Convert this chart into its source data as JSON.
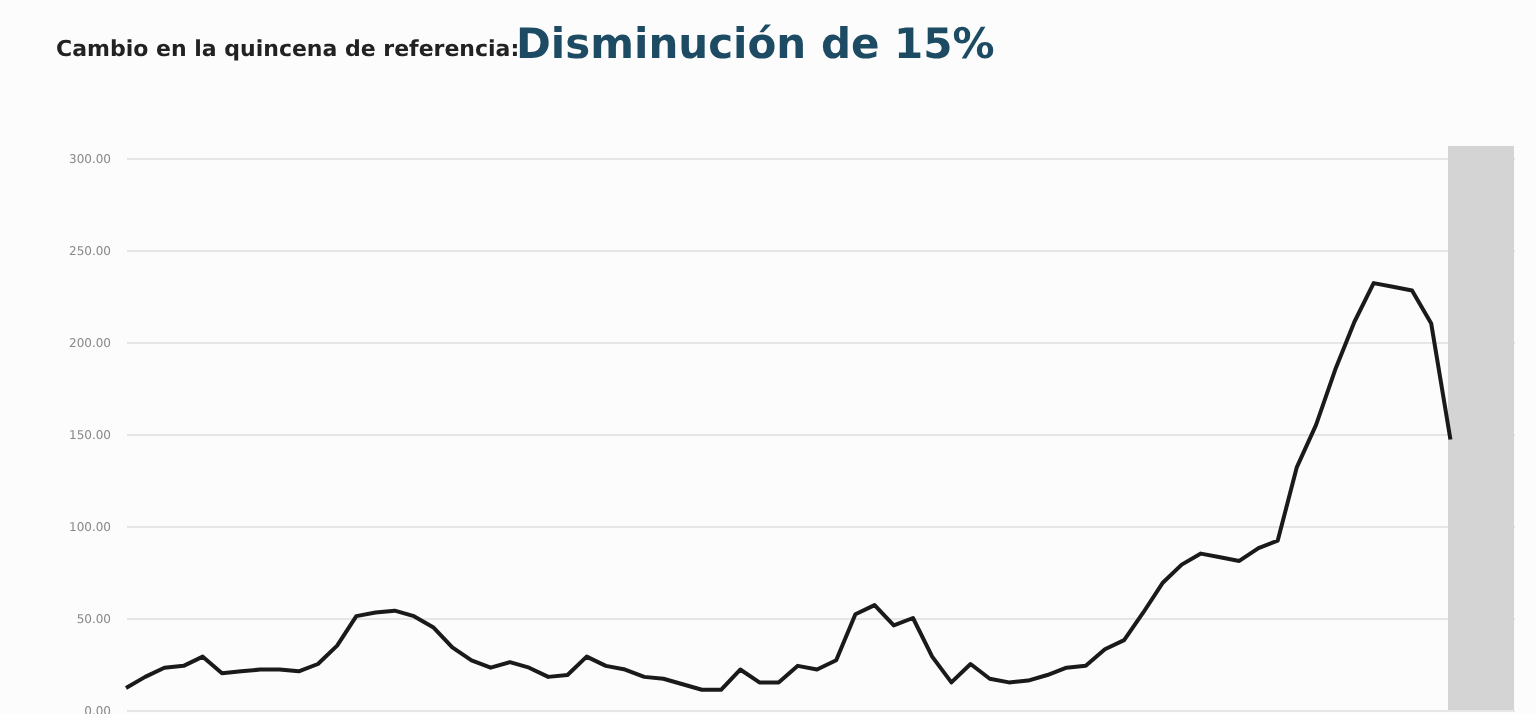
{
  "chart_data": {
    "type": "line",
    "title": "Disminución de 15%",
    "subtitle": "Cambio en la quincena de referencia:",
    "categories": [
      null,
      null,
      null,
      null,
      null,
      null,
      null,
      null,
      null,
      null,
      null,
      null,
      null,
      null,
      null,
      null,
      null,
      null,
      null,
      null,
      null,
      null,
      null,
      null,
      null,
      null,
      null,
      null,
      null,
      null,
      null,
      null,
      null,
      null,
      null,
      null,
      null,
      null,
      null,
      null,
      null,
      null,
      null,
      null,
      null,
      null,
      null,
      null,
      null,
      null,
      null,
      null,
      null,
      null,
      null,
      null,
      null,
      null,
      null,
      null,
      null,
      null,
      null,
      null,
      null,
      null,
      null,
      null,
      null,
      null
    ],
    "series": [
      {
        "color": "#1a1a1a",
        "values": [
          12,
          18,
          23,
          24,
          29,
          20,
          21,
          22,
          22,
          21,
          25,
          35,
          51,
          53,
          54,
          51,
          45,
          34,
          27,
          23,
          26,
          23,
          18,
          19,
          29,
          24,
          22,
          18,
          17,
          14,
          11,
          11,
          22,
          15,
          15,
          24,
          22,
          27,
          52,
          57,
          46,
          50,
          29,
          15,
          25,
          17,
          15,
          16,
          19,
          23,
          24,
          33,
          38,
          53,
          69,
          79,
          85,
          83,
          81,
          88,
          92,
          132,
          155,
          185,
          211,
          232,
          230,
          228,
          210,
          147
        ]
      }
    ],
    "ylim": [
      0,
      300
    ],
    "yticks": [
      {
        "value": 0,
        "label": "0.00"
      },
      {
        "value": 50,
        "label": "50.00"
      },
      {
        "value": 100,
        "label": "100.00"
      },
      {
        "value": 150,
        "label": "150.00"
      },
      {
        "value": 200,
        "label": "200.00"
      },
      {
        "value": 250,
        "label": "250.00"
      },
      {
        "value": 300,
        "label": "300.00"
      }
    ],
    "grid": "y",
    "tick_labels": "y",
    "marker": "none",
    "line_style": "solid"
  }
}
